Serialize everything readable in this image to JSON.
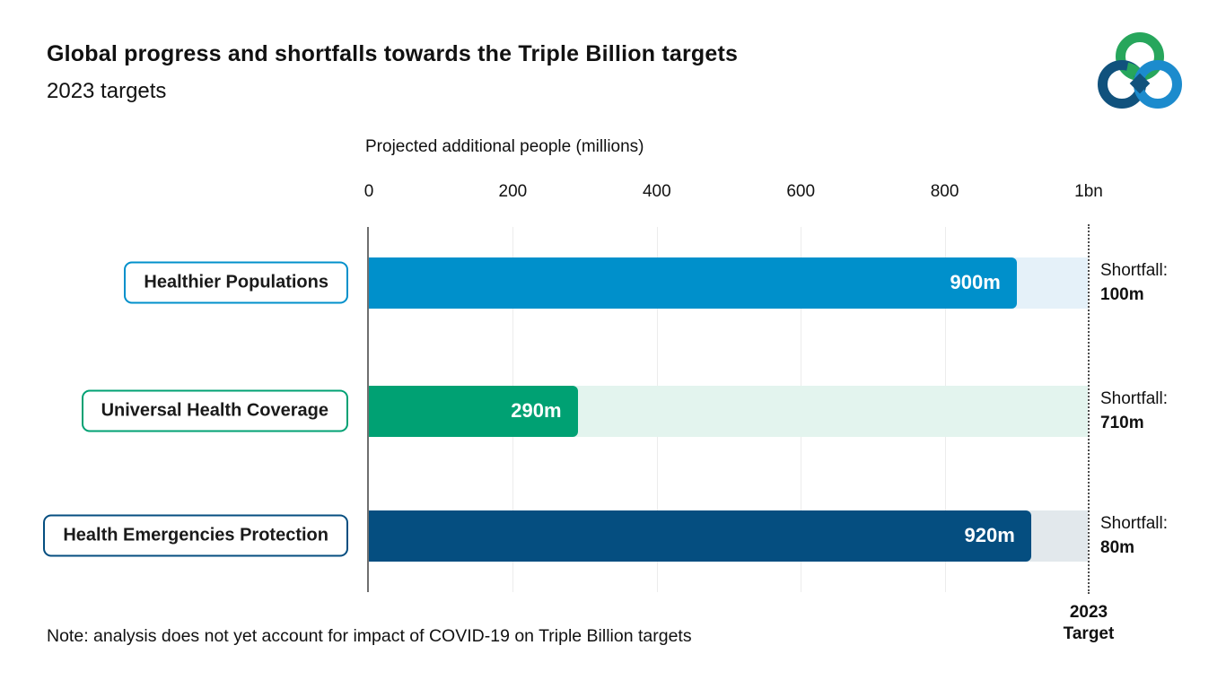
{
  "header": {
    "title": "Global progress and shortfalls towards the Triple Billion targets",
    "subtitle": "2023 targets"
  },
  "logo": {
    "name": "triple-billion-logo",
    "colors": {
      "green": "#27a65c",
      "dark_blue": "#11527d",
      "light_blue": "#1c8bcd"
    }
  },
  "chart_data": {
    "type": "bar",
    "orientation": "horizontal",
    "title": "Global progress and shortfalls towards the Triple Billion targets",
    "subtitle": "2023 targets",
    "xlabel": "Projected additional people (millions)",
    "xlim": [
      0,
      1000
    ],
    "x_ticks": [
      {
        "value": 0,
        "label": "0"
      },
      {
        "value": 200,
        "label": "200"
      },
      {
        "value": 400,
        "label": "400"
      },
      {
        "value": 600,
        "label": "600"
      },
      {
        "value": 800,
        "label": "800"
      },
      {
        "value": 1000,
        "label": "1bn"
      }
    ],
    "gridline_values": [
      200,
      400,
      600,
      800
    ],
    "grid": "vertical-light",
    "target_line": {
      "value": 1000,
      "label": "2023\nTarget",
      "style": "dotted"
    },
    "categories": [
      "Healthier Populations",
      "Universal Health Coverage",
      "Health Emergencies Protection"
    ],
    "rows": [
      {
        "category": "Healthier Populations",
        "value": 900,
        "value_label": "900m",
        "shortfall_title": "Shortfall:",
        "shortfall_value": "100m",
        "bar_color": "#0090cb",
        "track_color": "#e5f1f9",
        "border_color": "#0090cb"
      },
      {
        "category": "Universal Health Coverage",
        "value": 290,
        "value_label": "290m",
        "shortfall_title": "Shortfall:",
        "shortfall_value": "710m",
        "bar_color": "#00a173",
        "track_color": "#e3f4ee",
        "border_color": "#00a173"
      },
      {
        "category": "Health Emergencies Protection",
        "value": 920,
        "value_label": "920m",
        "shortfall_title": "Shortfall:",
        "shortfall_value": "80m",
        "bar_color": "#054e80",
        "track_color": "#e2e8ec",
        "border_color": "#054e80"
      }
    ]
  },
  "note": "Note: analysis does not yet account for impact of COVID-19 on Triple Billion targets",
  "target_label": "2023\nTarget"
}
